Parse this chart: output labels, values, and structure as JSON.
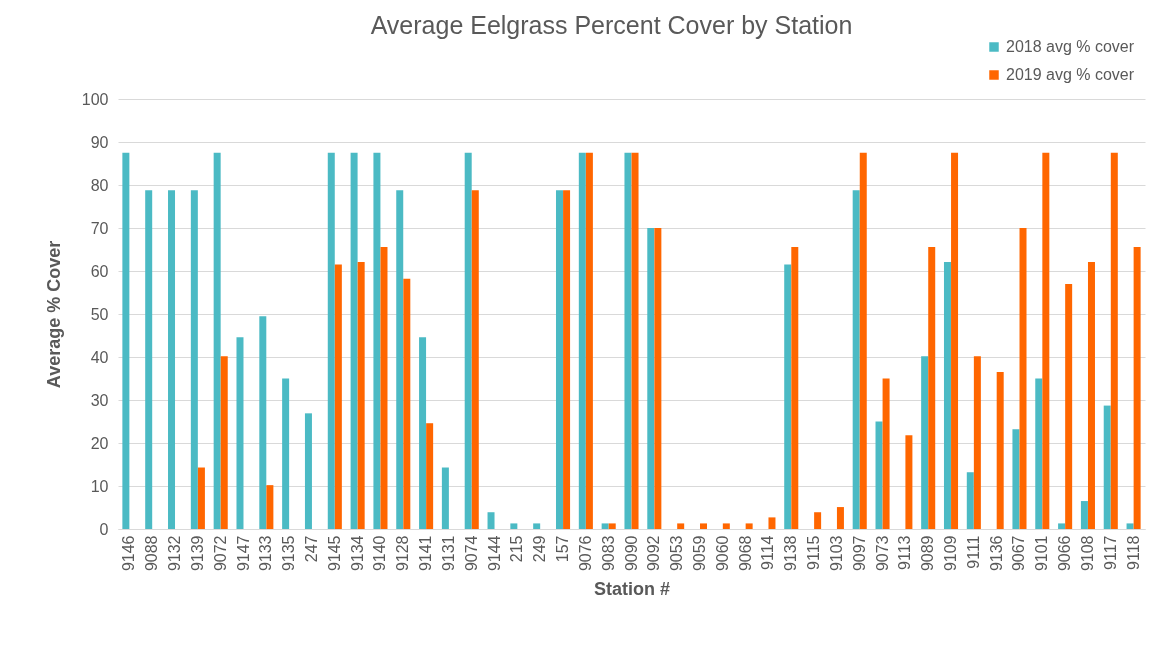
{
  "chart_data": {
    "type": "bar",
    "title": "Average Eelgrass Percent Cover by Station",
    "xlabel": "Station #",
    "ylabel": "Average % Cover",
    "categories": [
      "9146",
      "9088",
      "9132",
      "9139",
      "9072",
      "9147",
      "9133",
      "9135",
      "247",
      "9145",
      "9134",
      "9140",
      "9128",
      "9141",
      "9131",
      "9074",
      "9144",
      "215",
      "249",
      "157",
      "9076",
      "9083",
      "9090",
      "9092",
      "9053",
      "9059",
      "9060",
      "9068",
      "9114",
      "9138",
      "9115",
      "9103",
      "9097",
      "9073",
      "9113",
      "9089",
      "9109",
      "9111",
      "9136",
      "9067",
      "9101",
      "9066",
      "9108",
      "9117",
      "9118"
    ],
    "series": [
      {
        "name": "2018 avg % cover",
        "color": "#4bbac4",
        "values": [
          87.5,
          78.8,
          78.8,
          78.8,
          87.5,
          44.6,
          49.5,
          35,
          26.9,
          87.5,
          87.5,
          87.5,
          78.8,
          44.6,
          14.3,
          87.5,
          3.9,
          1.3,
          1.3,
          78.8,
          87.5,
          1.3,
          87.5,
          70,
          0,
          0,
          0,
          0,
          0,
          61.5,
          0,
          0,
          78.8,
          25,
          0,
          40.2,
          62.1,
          13.2,
          0,
          23.2,
          35,
          1.3,
          6.5,
          28.7,
          1.3
        ]
      },
      {
        "name": "2019 avg % cover",
        "color": "#ff6600",
        "values": [
          0,
          0,
          0,
          14.3,
          40.2,
          0,
          10.2,
          0,
          0,
          61.5,
          62.1,
          65.6,
          58.2,
          24.6,
          0,
          78.8,
          0,
          0,
          0,
          78.8,
          87.5,
          1.3,
          87.5,
          70,
          1.3,
          1.3,
          1.3,
          1.3,
          2.7,
          65.6,
          3.9,
          5.1,
          87.5,
          35,
          21.8,
          65.6,
          87.5,
          40.2,
          36.5,
          70,
          87.5,
          57,
          62.1,
          87.5,
          65.6
        ]
      }
    ],
    "ylim": [
      0,
      100
    ],
    "yticks": [
      0,
      10,
      20,
      30,
      40,
      50,
      60,
      70,
      80,
      90,
      100
    ],
    "grid": "y",
    "legend": "top right"
  }
}
